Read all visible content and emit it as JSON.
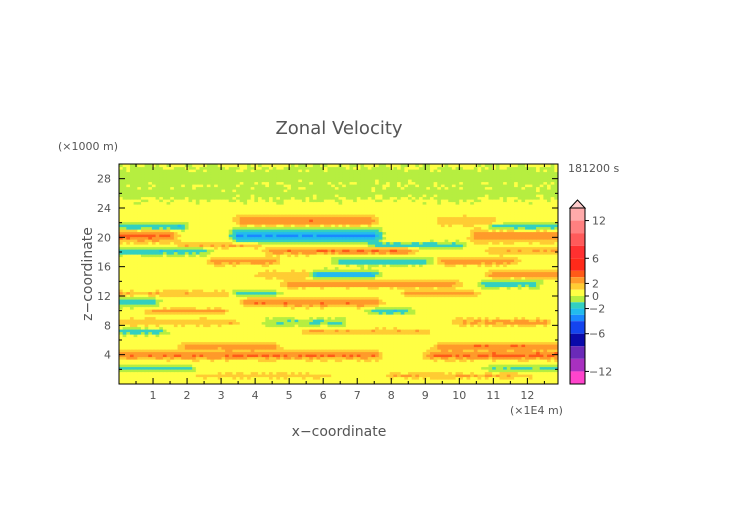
{
  "chart_data": {
    "type": "heatmap",
    "title": "Zonal Velocity",
    "xlabel": "x−coordinate",
    "ylabel": "z−coordinate",
    "x_unit": "(×1E4 m)",
    "y_unit": "(×1000 m)",
    "time_label": "181200 s",
    "xlim": [
      0,
      12.9
    ],
    "ylim": [
      0,
      30
    ],
    "x_ticks": [
      "1",
      "2",
      "3",
      "4",
      "5",
      "6",
      "7",
      "8",
      "9",
      "10",
      "11",
      "12"
    ],
    "y_ticks": [
      "4",
      "8",
      "12",
      "16",
      "20",
      "24",
      "28"
    ],
    "colorbar": {
      "tick_labels": [
        "12",
        "6",
        "2",
        "0",
        "−2",
        "−6",
        "−12"
      ],
      "levels": [
        {
          "min": 12,
          "max": 14,
          "color": "#ffaaaa"
        },
        {
          "min": 10,
          "max": 12,
          "color": "#ff8080"
        },
        {
          "min": 8,
          "max": 10,
          "color": "#ff5a5a"
        },
        {
          "min": 6,
          "max": 8,
          "color": "#ff3030"
        },
        {
          "min": 4,
          "max": 6,
          "color": "#ff2a1a"
        },
        {
          "min": 3,
          "max": 4,
          "color": "#ff5a18"
        },
        {
          "min": 2,
          "max": 3,
          "color": "#ff9a2a"
        },
        {
          "min": 1,
          "max": 2,
          "color": "#ffcc33"
        },
        {
          "min": 0,
          "max": 1,
          "color": "#ffff44"
        },
        {
          "min": -1,
          "max": 0,
          "color": "#b6ee40"
        },
        {
          "min": -2,
          "max": -1,
          "color": "#33d0c0"
        },
        {
          "min": -3,
          "max": -2,
          "color": "#22bbee"
        },
        {
          "min": -4,
          "max": -3,
          "color": "#1a88ff"
        },
        {
          "min": -6,
          "max": -4,
          "color": "#1444ee"
        },
        {
          "min": -8,
          "max": -6,
          "color": "#0a0aaa"
        },
        {
          "min": -10,
          "max": -8,
          "color": "#6a2ab8"
        },
        {
          "min": -12,
          "max": -10,
          "color": "#a830c0"
        },
        {
          "min": -14,
          "max": -12,
          "color": "#ff44cc"
        }
      ]
    },
    "background_value": 0.4,
    "bands": [
      {
        "z": 22.3,
        "half_thickness": 0.7,
        "segments": [
          [
            3.6,
            7.4,
            2.4
          ],
          [
            9.5,
            11.0,
            1.2
          ]
        ]
      },
      {
        "z": 20.3,
        "half_thickness": 0.9,
        "segments": [
          [
            0.0,
            1.5,
            2.8
          ],
          [
            10.5,
            12.9,
            2.2
          ]
        ]
      },
      {
        "z": 20.3,
        "half_thickness": 0.9,
        "segments": [
          [
            3.5,
            7.5,
            -3.6
          ]
        ]
      },
      {
        "z": 21.5,
        "half_thickness": 0.5,
        "segments": [
          [
            0.0,
            1.8,
            -2.5
          ],
          [
            11.0,
            12.9,
            -2.2
          ]
        ]
      },
      {
        "z": 19.0,
        "half_thickness": 0.4,
        "segments": [
          [
            1.9,
            4.0,
            1.8
          ],
          [
            7.6,
            10.0,
            -2.0
          ]
        ]
      },
      {
        "z": 18.2,
        "half_thickness": 0.5,
        "segments": [
          [
            0.0,
            2.5,
            -2.2
          ],
          [
            4.5,
            8.5,
            2.5
          ],
          [
            11.0,
            12.9,
            1.5
          ]
        ]
      },
      {
        "z": 16.8,
        "half_thickness": 0.5,
        "segments": [
          [
            2.8,
            4.5,
            2.2
          ],
          [
            6.5,
            9.0,
            -2.2
          ],
          [
            9.6,
            11.5,
            2.4
          ]
        ]
      },
      {
        "z": 15.0,
        "half_thickness": 0.5,
        "segments": [
          [
            4.2,
            5.5,
            1.5
          ],
          [
            5.8,
            7.4,
            -3.2
          ],
          [
            11.0,
            12.9,
            2.6
          ]
        ]
      },
      {
        "z": 13.7,
        "half_thickness": 0.5,
        "segments": [
          [
            5.0,
            9.8,
            2.3
          ],
          [
            10.8,
            12.2,
            -2.0
          ]
        ]
      },
      {
        "z": 12.4,
        "half_thickness": 0.4,
        "segments": [
          [
            0.0,
            3.2,
            1.5
          ],
          [
            3.5,
            4.5,
            -2.0
          ],
          [
            8.5,
            10.3,
            2.2
          ]
        ]
      },
      {
        "z": 11.2,
        "half_thickness": 0.6,
        "segments": [
          [
            3.8,
            7.5,
            2.6
          ],
          [
            0.0,
            1.0,
            -2.0
          ]
        ]
      },
      {
        "z": 10.0,
        "half_thickness": 0.4,
        "segments": [
          [
            1.0,
            3.0,
            2.0
          ],
          [
            7.5,
            8.4,
            -2.2
          ]
        ]
      },
      {
        "z": 8.5,
        "half_thickness": 0.5,
        "segments": [
          [
            0.0,
            3.3,
            1.5
          ],
          [
            4.5,
            6.5,
            -1.5
          ],
          [
            10.0,
            12.5,
            1.8
          ]
        ]
      },
      {
        "z": 7.2,
        "half_thickness": 0.4,
        "segments": [
          [
            0.0,
            1.2,
            -2.0
          ],
          [
            5.5,
            9.0,
            1.6
          ]
        ]
      },
      {
        "z": 5.2,
        "half_thickness": 0.5,
        "segments": [
          [
            2.0,
            4.5,
            2.0
          ],
          [
            9.5,
            12.9,
            2.5
          ]
        ]
      },
      {
        "z": 4.0,
        "half_thickness": 0.6,
        "segments": [
          [
            0.0,
            7.5,
            2.6
          ],
          [
            9.2,
            12.9,
            2.8
          ]
        ]
      },
      {
        "z": 2.2,
        "half_thickness": 0.4,
        "segments": [
          [
            0.0,
            2.0,
            -2.0
          ],
          [
            11.0,
            12.9,
            -1.5
          ]
        ]
      },
      {
        "z": 1.2,
        "half_thickness": 0.4,
        "segments": [
          [
            2.5,
            6.0,
            1.2
          ],
          [
            8.0,
            12.0,
            1.5
          ]
        ]
      },
      {
        "z": 26.0,
        "half_thickness": 1.2,
        "segments": [
          [
            0.0,
            12.9,
            -0.6
          ]
        ]
      },
      {
        "z": 28.5,
        "half_thickness": 1.5,
        "segments": [
          [
            0.0,
            12.9,
            -0.7
          ]
        ]
      }
    ]
  }
}
